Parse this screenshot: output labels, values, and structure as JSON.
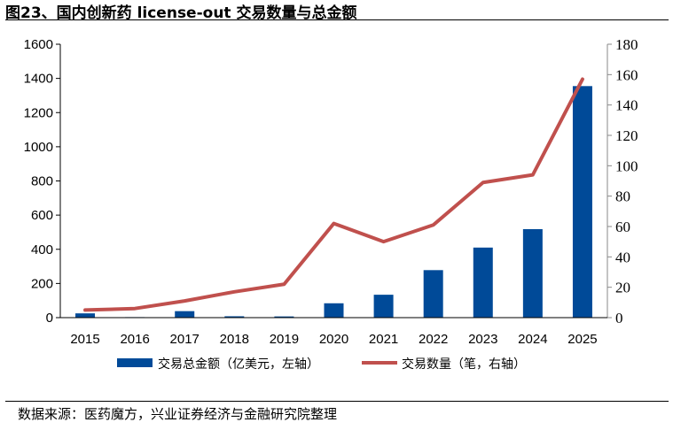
{
  "title": "图23、国内创新药 license-out 交易数量与总金额",
  "source": "数据来源：医药魔方，兴业证券经济与金融研究院整理",
  "colors": {
    "bar": "#004a98",
    "line": "#c0504d"
  },
  "chart_data": {
    "type": "bar+line",
    "categories": [
      "2015",
      "2016",
      "2017",
      "2018",
      "2019",
      "2020",
      "2021",
      "2022",
      "2023",
      "2024",
      "2025"
    ],
    "series": [
      {
        "name": "交易总金额（亿美元，左轴）",
        "type": "bar",
        "axis": "left",
        "values": [
          25,
          3,
          38,
          8,
          7,
          84,
          134,
          278,
          410,
          518,
          1355
        ]
      },
      {
        "name": "交易数量（笔，右轴）",
        "type": "line",
        "axis": "right",
        "values": [
          5,
          6,
          11,
          17,
          22,
          62,
          50,
          61,
          89,
          94,
          157
        ]
      }
    ],
    "y_left": {
      "range": [
        0,
        1600
      ],
      "ticks": [
        "0",
        "200",
        "400",
        "600",
        "800",
        "1000",
        "1200",
        "1400",
        "1600"
      ]
    },
    "y_right": {
      "range": [
        0,
        180
      ],
      "ticks": [
        "0",
        "20",
        "40",
        "60",
        "80",
        "100",
        "120",
        "140",
        "160",
        "180"
      ]
    },
    "grid": false,
    "legend_position": "bottom"
  }
}
